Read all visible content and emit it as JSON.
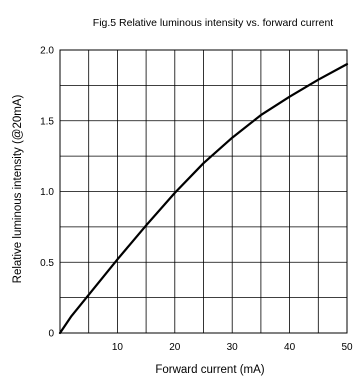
{
  "chart_data": {
    "type": "line",
    "title": "Fig.5 Relative luminous intensity vs. forward current",
    "xlabel": "Forward current (mA)",
    "ylabel": "Relative luminous intensity (@20mA)",
    "xlim": [
      0,
      50
    ],
    "ylim": [
      0,
      2.0
    ],
    "x_ticks": [
      0,
      5,
      10,
      15,
      20,
      25,
      30,
      35,
      40,
      45,
      50
    ],
    "x_tick_labels": [
      "",
      "",
      "10",
      "",
      "20",
      "",
      "30",
      "",
      "40",
      "",
      "50"
    ],
    "y_ticks": [
      0,
      0.25,
      0.5,
      0.75,
      1.0,
      1.25,
      1.5,
      1.75,
      2.0
    ],
    "y_tick_labels": [
      "0",
      "",
      "0.5",
      "",
      "1.0",
      "",
      "1.5",
      "",
      "2.0"
    ],
    "grid": true,
    "series": [
      {
        "color": "#000000",
        "x": [
          0,
          2,
          5,
          10,
          15,
          20,
          25,
          30,
          35,
          40,
          45,
          50
        ],
        "y": [
          0,
          0.12,
          0.27,
          0.52,
          0.76,
          0.99,
          1.2,
          1.38,
          1.54,
          1.67,
          1.79,
          1.9
        ]
      }
    ]
  }
}
